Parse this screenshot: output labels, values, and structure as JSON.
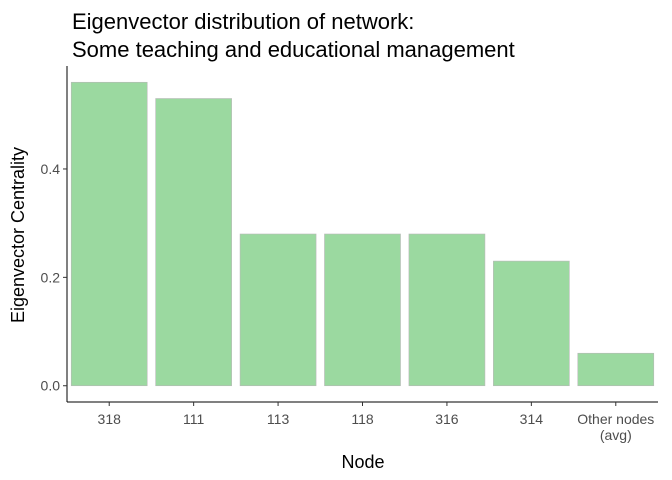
{
  "chart_data": {
    "type": "bar",
    "title_line1": "Eigenvector distribution of network:",
    "title_line2": "Some teaching and educational management",
    "xlabel": "Node",
    "ylabel": "Eigenvector Centrality",
    "categories": [
      [
        "318"
      ],
      [
        "111"
      ],
      [
        "113"
      ],
      [
        "118"
      ],
      [
        "316"
      ],
      [
        "314"
      ],
      [
        "Other nodes",
        "(avg)"
      ]
    ],
    "values": [
      0.56,
      0.53,
      0.28,
      0.28,
      0.28,
      0.23,
      0.06
    ],
    "yticks": [
      0.0,
      0.2,
      0.4
    ],
    "ytick_labels": [
      "0.0",
      "0.2",
      "0.4"
    ],
    "ylim": [
      -0.03,
      0.59
    ],
    "grid": false,
    "bar_color": "#9bd9a0",
    "bar_border_color": "#b8b8b8"
  }
}
